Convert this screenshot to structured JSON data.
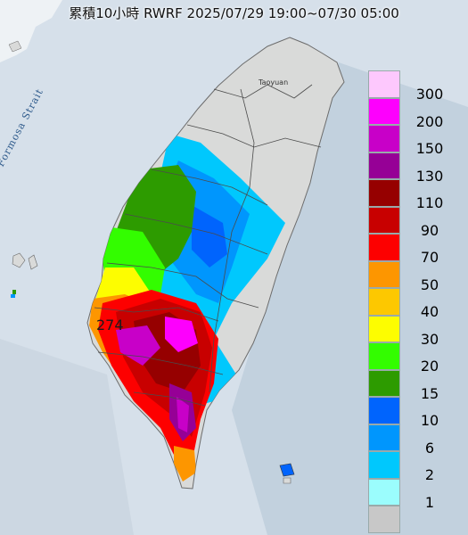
{
  "title": "累積10小時 RWRF 2025/07/29 19:00~07/30 05:00",
  "map_labels": {
    "strait": "Formosa Strait",
    "city": "Taoyuan",
    "max_value": "274"
  },
  "legend": [
    {
      "label": "300",
      "color": "#fdc8fd"
    },
    {
      "label": "200",
      "color": "#fd00fd"
    },
    {
      "label": "150",
      "color": "#c800c8"
    },
    {
      "label": "130",
      "color": "#960096"
    },
    {
      "label": "110",
      "color": "#960000"
    },
    {
      "label": "90",
      "color": "#c80000"
    },
    {
      "label": "70",
      "color": "#fd0000"
    },
    {
      "label": "50",
      "color": "#fd9600"
    },
    {
      "label": "40",
      "color": "#fdc800"
    },
    {
      "label": "30",
      "color": "#fdfd00"
    },
    {
      "label": "20",
      "color": "#33fd00"
    },
    {
      "label": "15",
      "color": "#2d9b00"
    },
    {
      "label": "10",
      "color": "#0064fd"
    },
    {
      "label": "6",
      "color": "#0096fd"
    },
    {
      "label": "2",
      "color": "#00c8fd"
    },
    {
      "label": "1",
      "color": "#9bfdfd"
    },
    {
      "label": "",
      "color": "#c8c8c8"
    }
  ]
}
